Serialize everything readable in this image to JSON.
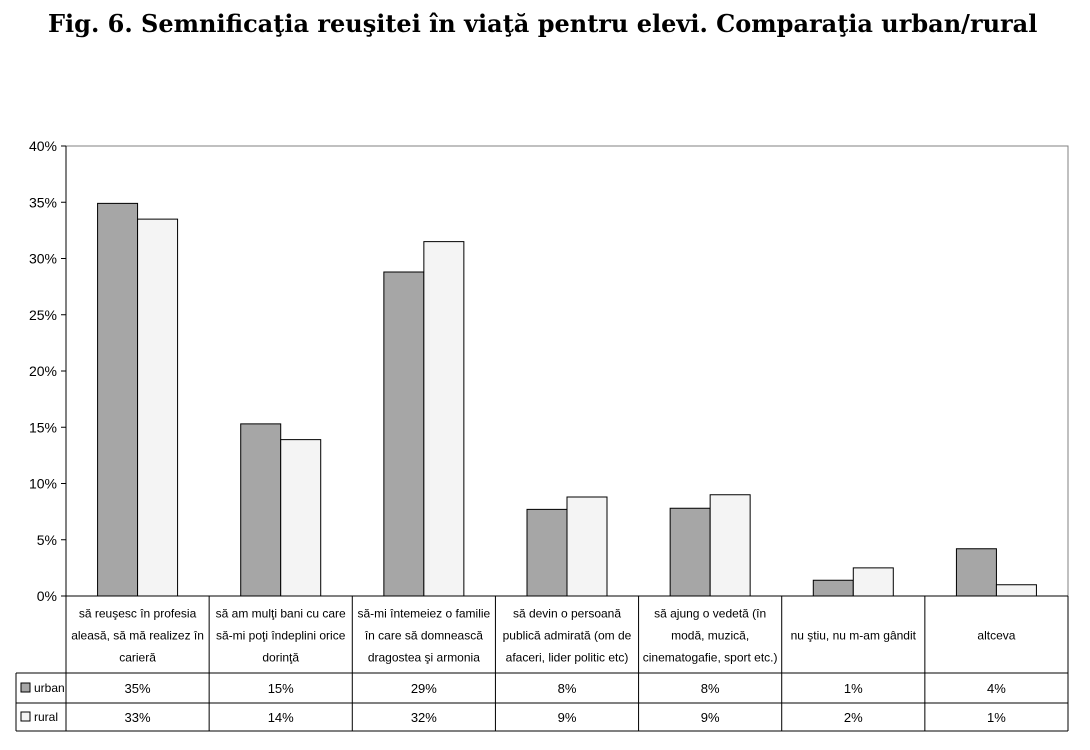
{
  "title": "Fig. 6.  Semnificaţia reuşitei în viaţă pentru elevi. Comparaţia urban/rural",
  "chart_data": {
    "type": "bar",
    "categories": [
      [
        "să reuşesc în profesia",
        "aleasă, să mă realizez în",
        "carieră"
      ],
      [
        "să am mulţi bani cu care",
        "să-mi poţi îndeplini orice",
        "dorinţă"
      ],
      [
        "să-mi întemeiez o familie",
        "în care să domnească",
        "dragostea şi armonia"
      ],
      [
        "să devin o persoană",
        "publică admirată (om de",
        "afaceri, lider politic etc)"
      ],
      [
        "să ajung o vedetă (în",
        "modă, muzică,",
        "cinematogafie, sport etc.)"
      ],
      [
        "nu ştiu, nu m-am gândit"
      ],
      [
        "altceva"
      ]
    ],
    "series": [
      {
        "name": "urban",
        "color": "#a6a6a6",
        "values": [
          34.9,
          15.3,
          28.8,
          7.7,
          7.8,
          1.4,
          4.2
        ],
        "labels": [
          "35%",
          "15%",
          "29%",
          "8%",
          "8%",
          "1%",
          "4%"
        ]
      },
      {
        "name": "rural",
        "color": "#f4f4f4",
        "values": [
          33.5,
          13.9,
          31.5,
          8.8,
          9.0,
          2.5,
          1.0
        ],
        "labels": [
          "33%",
          "14%",
          "32%",
          "9%",
          "9%",
          "2%",
          "1%"
        ]
      }
    ],
    "ylim": [
      0,
      40
    ],
    "yticks": [
      0,
      5,
      10,
      15,
      20,
      25,
      30,
      35,
      40
    ],
    "ytick_labels": [
      "0%",
      "5%",
      "10%",
      "15%",
      "20%",
      "25%",
      "30%",
      "35%",
      "40%"
    ],
    "grid": false,
    "legend": "data-table-rows"
  }
}
